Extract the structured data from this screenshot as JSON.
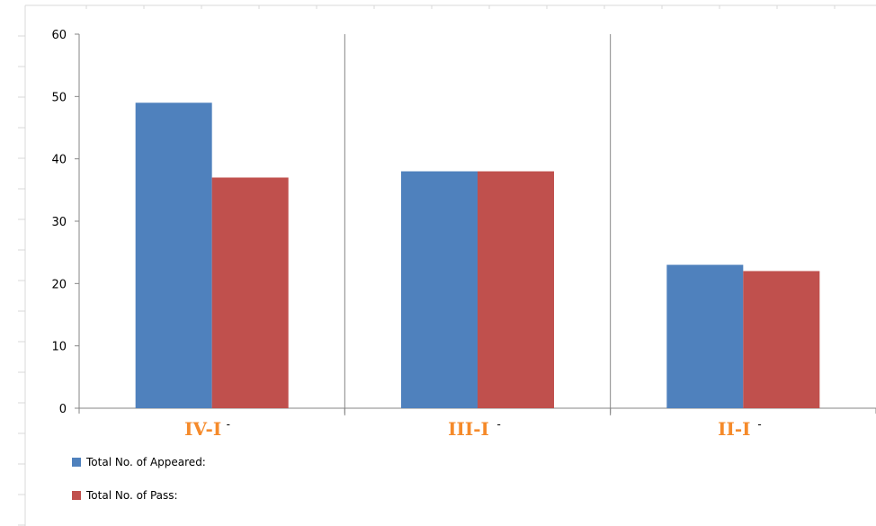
{
  "chart_data": {
    "type": "bar",
    "categories": [
      "IV-I",
      "III-I",
      "II-I"
    ],
    "category_suffix": "-",
    "series": [
      {
        "name": "Total No. of Appeared:",
        "color": "#4f81bd",
        "values": [
          49,
          38,
          23
        ]
      },
      {
        "name": "Total No. of Pass:",
        "color": "#c0504d",
        "values": [
          37,
          38,
          22
        ]
      }
    ],
    "ylim": [
      0,
      60
    ],
    "yticks": [
      0,
      10,
      20,
      30,
      40,
      50,
      60
    ],
    "grid": false,
    "legend_position": "bottom-left",
    "category_label_color": "#f58a2a"
  }
}
